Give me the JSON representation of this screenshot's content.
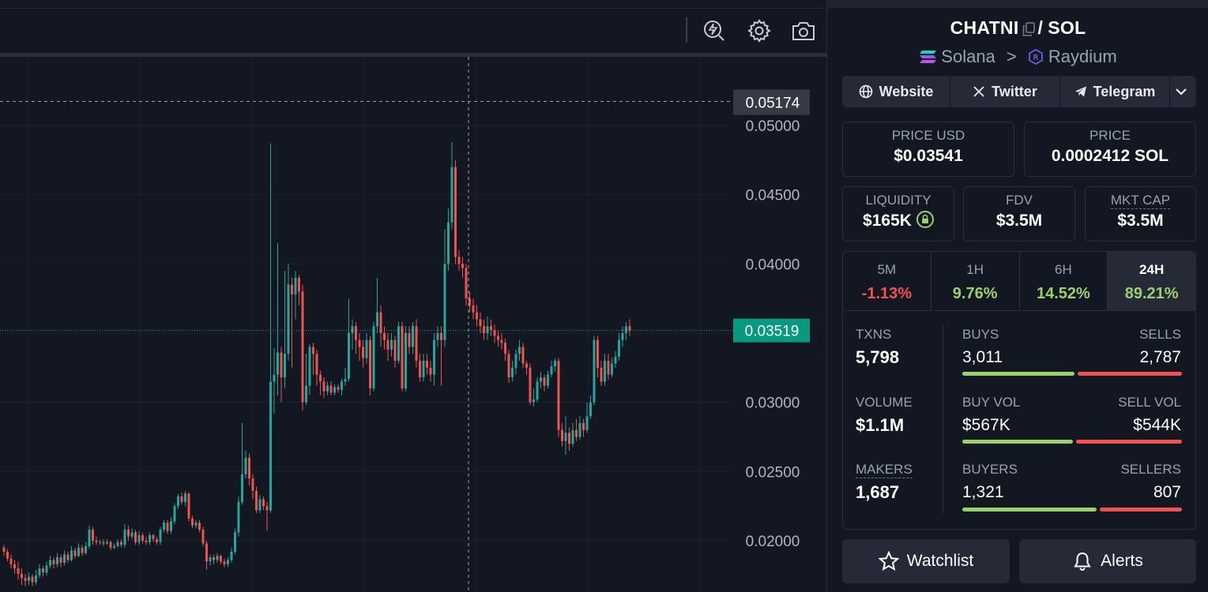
{
  "chart": {
    "price_ticks": [
      "0.05000",
      "0.04500",
      "0.04000",
      "0.03000",
      "0.02500",
      "0.02000"
    ],
    "crosshair_price": "0.05174",
    "last_price": "0.03519",
    "colors": {
      "up": "#26a69a",
      "down": "#ef5350",
      "last_price_bg": "#089981",
      "crosshair_bg": "#363a45"
    }
  },
  "chart_data": {
    "type": "candlestick",
    "y_axis_ticks": [
      0.05,
      0.045,
      0.04,
      0.03,
      0.025,
      0.02
    ],
    "ylim": [
      0.0165,
      0.0545
    ],
    "last_price": 0.03519,
    "crosshair_price": 0.05174,
    "candles": [
      {
        "o": 0.0195,
        "c": 0.0192,
        "h": 0.0197,
        "l": 0.0189
      },
      {
        "o": 0.0192,
        "c": 0.0187,
        "h": 0.0194,
        "l": 0.0185
      },
      {
        "o": 0.0187,
        "c": 0.0183,
        "h": 0.019,
        "l": 0.018
      },
      {
        "o": 0.0183,
        "c": 0.018,
        "h": 0.0186,
        "l": 0.0176
      },
      {
        "o": 0.018,
        "c": 0.0176,
        "h": 0.0185,
        "l": 0.0172
      },
      {
        "o": 0.0176,
        "c": 0.0173,
        "h": 0.018,
        "l": 0.0168
      },
      {
        "o": 0.0173,
        "c": 0.0171,
        "h": 0.0176,
        "l": 0.0167
      },
      {
        "o": 0.0171,
        "c": 0.0174,
        "h": 0.0177,
        "l": 0.0168
      },
      {
        "o": 0.0174,
        "c": 0.017,
        "h": 0.0176,
        "l": 0.0167
      },
      {
        "o": 0.017,
        "c": 0.0175,
        "h": 0.0179,
        "l": 0.0168
      },
      {
        "o": 0.0175,
        "c": 0.018,
        "h": 0.0183,
        "l": 0.0173
      },
      {
        "o": 0.018,
        "c": 0.0177,
        "h": 0.0182,
        "l": 0.0174
      },
      {
        "o": 0.0177,
        "c": 0.0182,
        "h": 0.0185,
        "l": 0.0175
      },
      {
        "o": 0.0182,
        "c": 0.0186,
        "h": 0.0189,
        "l": 0.018
      },
      {
        "o": 0.0186,
        "c": 0.0183,
        "h": 0.0188,
        "l": 0.018
      },
      {
        "o": 0.0183,
        "c": 0.0188,
        "h": 0.0191,
        "l": 0.0181
      },
      {
        "o": 0.0188,
        "c": 0.0184,
        "h": 0.019,
        "l": 0.0181
      },
      {
        "o": 0.0184,
        "c": 0.019,
        "h": 0.0193,
        "l": 0.0182
      },
      {
        "o": 0.019,
        "c": 0.0186,
        "h": 0.0192,
        "l": 0.0184
      },
      {
        "o": 0.0186,
        "c": 0.0193,
        "h": 0.0196,
        "l": 0.0185
      },
      {
        "o": 0.0193,
        "c": 0.0189,
        "h": 0.0195,
        "l": 0.0187
      },
      {
        "o": 0.0189,
        "c": 0.0195,
        "h": 0.0198,
        "l": 0.0188
      },
      {
        "o": 0.0195,
        "c": 0.0191,
        "h": 0.0197,
        "l": 0.0189
      },
      {
        "o": 0.0191,
        "c": 0.0196,
        "h": 0.0199,
        "l": 0.019
      },
      {
        "o": 0.0196,
        "c": 0.0208,
        "h": 0.0211,
        "l": 0.0194
      },
      {
        "o": 0.0208,
        "c": 0.02,
        "h": 0.021,
        "l": 0.0197
      },
      {
        "o": 0.02,
        "c": 0.0199,
        "h": 0.0203,
        "l": 0.0197
      },
      {
        "o": 0.0199,
        "c": 0.0199,
        "h": 0.0201,
        "l": 0.0197
      },
      {
        "o": 0.0199,
        "c": 0.0198,
        "h": 0.0201,
        "l": 0.0196
      },
      {
        "o": 0.0198,
        "c": 0.0199,
        "h": 0.0201,
        "l": 0.0197
      },
      {
        "o": 0.0199,
        "c": 0.0195,
        "h": 0.02,
        "l": 0.0193
      },
      {
        "o": 0.0195,
        "c": 0.0196,
        "h": 0.0198,
        "l": 0.0194
      },
      {
        "o": 0.0196,
        "c": 0.0199,
        "h": 0.0201,
        "l": 0.0195
      },
      {
        "o": 0.0199,
        "c": 0.0197,
        "h": 0.0201,
        "l": 0.0195
      },
      {
        "o": 0.0197,
        "c": 0.0208,
        "h": 0.0212,
        "l": 0.0195
      },
      {
        "o": 0.0208,
        "c": 0.0203,
        "h": 0.0211,
        "l": 0.02
      },
      {
        "o": 0.0203,
        "c": 0.0206,
        "h": 0.0209,
        "l": 0.0201
      },
      {
        "o": 0.0206,
        "c": 0.0199,
        "h": 0.0208,
        "l": 0.0197
      },
      {
        "o": 0.0199,
        "c": 0.0204,
        "h": 0.0207,
        "l": 0.0197
      },
      {
        "o": 0.0204,
        "c": 0.02,
        "h": 0.0206,
        "l": 0.0198
      },
      {
        "o": 0.02,
        "c": 0.0199,
        "h": 0.0203,
        "l": 0.0197
      },
      {
        "o": 0.0199,
        "c": 0.0204,
        "h": 0.0206,
        "l": 0.0197
      },
      {
        "o": 0.0204,
        "c": 0.0201,
        "h": 0.0205,
        "l": 0.0199
      },
      {
        "o": 0.0201,
        "c": 0.0199,
        "h": 0.0203,
        "l": 0.0197
      },
      {
        "o": 0.0199,
        "c": 0.0208,
        "h": 0.021,
        "l": 0.0197
      },
      {
        "o": 0.0208,
        "c": 0.0213,
        "h": 0.0215,
        "l": 0.0206
      },
      {
        "o": 0.0213,
        "c": 0.0207,
        "h": 0.0215,
        "l": 0.0205
      },
      {
        "o": 0.0207,
        "c": 0.0214,
        "h": 0.0217,
        "l": 0.0205
      },
      {
        "o": 0.0214,
        "c": 0.0225,
        "h": 0.0227,
        "l": 0.0212
      },
      {
        "o": 0.0225,
        "c": 0.0232,
        "h": 0.0234,
        "l": 0.0223
      },
      {
        "o": 0.0232,
        "c": 0.0228,
        "h": 0.0235,
        "l": 0.0226
      },
      {
        "o": 0.0228,
        "c": 0.0234,
        "h": 0.0236,
        "l": 0.0225
      },
      {
        "o": 0.0234,
        "c": 0.0216,
        "h": 0.0235,
        "l": 0.0214
      },
      {
        "o": 0.0216,
        "c": 0.0211,
        "h": 0.0218,
        "l": 0.0209
      },
      {
        "o": 0.0211,
        "c": 0.0213,
        "h": 0.0215,
        "l": 0.0209
      },
      {
        "o": 0.0213,
        "c": 0.0208,
        "h": 0.0215,
        "l": 0.0206
      },
      {
        "o": 0.0208,
        "c": 0.0198,
        "h": 0.021,
        "l": 0.0196
      },
      {
        "o": 0.0198,
        "c": 0.0185,
        "h": 0.02,
        "l": 0.0179
      },
      {
        "o": 0.0185,
        "c": 0.0188,
        "h": 0.019,
        "l": 0.0182
      },
      {
        "o": 0.0188,
        "c": 0.0186,
        "h": 0.019,
        "l": 0.0183
      },
      {
        "o": 0.0186,
        "c": 0.0189,
        "h": 0.0191,
        "l": 0.0184
      },
      {
        "o": 0.0189,
        "c": 0.0185,
        "h": 0.019,
        "l": 0.0183
      },
      {
        "o": 0.0185,
        "c": 0.0183,
        "h": 0.0187,
        "l": 0.0181
      },
      {
        "o": 0.0183,
        "c": 0.0186,
        "h": 0.0188,
        "l": 0.0181
      },
      {
        "o": 0.0186,
        "c": 0.0192,
        "h": 0.0195,
        "l": 0.0184
      },
      {
        "o": 0.0192,
        "c": 0.0206,
        "h": 0.0209,
        "l": 0.019
      },
      {
        "o": 0.0206,
        "c": 0.0228,
        "h": 0.0232,
        "l": 0.0203
      },
      {
        "o": 0.0228,
        "c": 0.0248,
        "h": 0.0285,
        "l": 0.0226
      },
      {
        "o": 0.0248,
        "c": 0.026,
        "h": 0.0265,
        "l": 0.0245
      },
      {
        "o": 0.026,
        "c": 0.0245,
        "h": 0.0263,
        "l": 0.024
      },
      {
        "o": 0.0245,
        "c": 0.0236,
        "h": 0.0248,
        "l": 0.023
      },
      {
        "o": 0.0236,
        "c": 0.0222,
        "h": 0.0239,
        "l": 0.022
      },
      {
        "o": 0.0222,
        "c": 0.023,
        "h": 0.0233,
        "l": 0.022
      },
      {
        "o": 0.023,
        "c": 0.0225,
        "h": 0.0232,
        "l": 0.0222
      },
      {
        "o": 0.0225,
        "c": 0.0222,
        "h": 0.0228,
        "l": 0.0207
      },
      {
        "o": 0.0222,
        "c": 0.0315,
        "h": 0.0487,
        "l": 0.022
      },
      {
        "o": 0.0315,
        "c": 0.032,
        "h": 0.0339,
        "l": 0.0292
      },
      {
        "o": 0.032,
        "c": 0.0336,
        "h": 0.0415,
        "l": 0.0305
      },
      {
        "o": 0.0336,
        "c": 0.0318,
        "h": 0.034,
        "l": 0.03
      },
      {
        "o": 0.0318,
        "c": 0.0335,
        "h": 0.0395,
        "l": 0.031
      },
      {
        "o": 0.0335,
        "c": 0.0385,
        "h": 0.04,
        "l": 0.033
      },
      {
        "o": 0.0385,
        "c": 0.0378,
        "h": 0.039,
        "l": 0.0325
      },
      {
        "o": 0.0378,
        "c": 0.039,
        "h": 0.0395,
        "l": 0.036
      },
      {
        "o": 0.039,
        "c": 0.038,
        "h": 0.0392,
        "l": 0.037
      },
      {
        "o": 0.038,
        "c": 0.03,
        "h": 0.0385,
        "l": 0.0294
      },
      {
        "o": 0.03,
        "c": 0.0312,
        "h": 0.0335,
        "l": 0.0298
      },
      {
        "o": 0.0312,
        "c": 0.034,
        "h": 0.0342,
        "l": 0.0305
      },
      {
        "o": 0.034,
        "c": 0.0335,
        "h": 0.0343,
        "l": 0.032
      },
      {
        "o": 0.0335,
        "c": 0.032,
        "h": 0.0338,
        "l": 0.0312
      },
      {
        "o": 0.032,
        "c": 0.0315,
        "h": 0.0323,
        "l": 0.0305
      },
      {
        "o": 0.0315,
        "c": 0.0308,
        "h": 0.0318,
        "l": 0.0303
      },
      {
        "o": 0.0308,
        "c": 0.0312,
        "h": 0.0315,
        "l": 0.0305
      },
      {
        "o": 0.0312,
        "c": 0.0307,
        "h": 0.0315,
        "l": 0.0305
      },
      {
        "o": 0.0307,
        "c": 0.0311,
        "h": 0.0313,
        "l": 0.0305
      },
      {
        "o": 0.0311,
        "c": 0.0309,
        "h": 0.0313,
        "l": 0.0307
      },
      {
        "o": 0.0309,
        "c": 0.0315,
        "h": 0.0317,
        "l": 0.0305
      },
      {
        "o": 0.0315,
        "c": 0.0317,
        "h": 0.0325,
        "l": 0.0312
      },
      {
        "o": 0.0317,
        "c": 0.035,
        "h": 0.0375,
        "l": 0.0315
      },
      {
        "o": 0.035,
        "c": 0.0355,
        "h": 0.036,
        "l": 0.0338
      },
      {
        "o": 0.0355,
        "c": 0.0345,
        "h": 0.0358,
        "l": 0.0335
      },
      {
        "o": 0.0345,
        "c": 0.034,
        "h": 0.035,
        "l": 0.033
      },
      {
        "o": 0.034,
        "c": 0.0332,
        "h": 0.0345,
        "l": 0.0325
      },
      {
        "o": 0.0332,
        "c": 0.0345,
        "h": 0.035,
        "l": 0.0328
      },
      {
        "o": 0.0345,
        "c": 0.031,
        "h": 0.0348,
        "l": 0.0305
      },
      {
        "o": 0.031,
        "c": 0.0355,
        "h": 0.0358,
        "l": 0.0308
      },
      {
        "o": 0.0355,
        "c": 0.0365,
        "h": 0.039,
        "l": 0.035
      },
      {
        "o": 0.0365,
        "c": 0.035,
        "h": 0.037,
        "l": 0.034
      },
      {
        "o": 0.035,
        "c": 0.0345,
        "h": 0.0355,
        "l": 0.0338
      },
      {
        "o": 0.0345,
        "c": 0.0338,
        "h": 0.035,
        "l": 0.033
      },
      {
        "o": 0.0338,
        "c": 0.0345,
        "h": 0.035,
        "l": 0.0333
      },
      {
        "o": 0.0345,
        "c": 0.033,
        "h": 0.0348,
        "l": 0.0325
      },
      {
        "o": 0.033,
        "c": 0.0355,
        "h": 0.0358,
        "l": 0.0328
      },
      {
        "o": 0.0355,
        "c": 0.031,
        "h": 0.0358,
        "l": 0.0308
      },
      {
        "o": 0.031,
        "c": 0.035,
        "h": 0.0355,
        "l": 0.0308
      },
      {
        "o": 0.035,
        "c": 0.034,
        "h": 0.0355,
        "l": 0.0335
      },
      {
        "o": 0.034,
        "c": 0.0355,
        "h": 0.0358,
        "l": 0.0335
      },
      {
        "o": 0.0355,
        "c": 0.033,
        "h": 0.036,
        "l": 0.0325
      },
      {
        "o": 0.033,
        "c": 0.0318,
        "h": 0.0335,
        "l": 0.0315
      },
      {
        "o": 0.0318,
        "c": 0.033,
        "h": 0.0335,
        "l": 0.0315
      },
      {
        "o": 0.033,
        "c": 0.0325,
        "h": 0.0335,
        "l": 0.032
      },
      {
        "o": 0.0325,
        "c": 0.032,
        "h": 0.033,
        "l": 0.0315
      },
      {
        "o": 0.032,
        "c": 0.0345,
        "h": 0.035,
        "l": 0.0312
      },
      {
        "o": 0.0345,
        "c": 0.035,
        "h": 0.0355,
        "l": 0.034
      },
      {
        "o": 0.035,
        "c": 0.0345,
        "h": 0.0355,
        "l": 0.0312
      },
      {
        "o": 0.0345,
        "c": 0.04,
        "h": 0.0425,
        "l": 0.034
      },
      {
        "o": 0.04,
        "c": 0.043,
        "h": 0.044,
        "l": 0.0395
      },
      {
        "o": 0.043,
        "c": 0.047,
        "h": 0.0488,
        "l": 0.0425
      },
      {
        "o": 0.047,
        "c": 0.0405,
        "h": 0.0475,
        "l": 0.04
      },
      {
        "o": 0.0405,
        "c": 0.04,
        "h": 0.041,
        "l": 0.0395
      },
      {
        "o": 0.04,
        "c": 0.0397,
        "h": 0.0405,
        "l": 0.039
      },
      {
        "o": 0.0397,
        "c": 0.0375,
        "h": 0.04,
        "l": 0.037
      },
      {
        "o": 0.0375,
        "c": 0.037,
        "h": 0.038,
        "l": 0.0365
      },
      {
        "o": 0.037,
        "c": 0.0365,
        "h": 0.0375,
        "l": 0.036
      },
      {
        "o": 0.0365,
        "c": 0.036,
        "h": 0.037,
        "l": 0.0355
      },
      {
        "o": 0.036,
        "c": 0.0355,
        "h": 0.0365,
        "l": 0.035
      },
      {
        "o": 0.0355,
        "c": 0.035,
        "h": 0.036,
        "l": 0.0345
      },
      {
        "o": 0.035,
        "c": 0.0355,
        "h": 0.0362,
        "l": 0.0345
      },
      {
        "o": 0.0355,
        "c": 0.0352,
        "h": 0.036,
        "l": 0.0348
      },
      {
        "o": 0.0352,
        "c": 0.0348,
        "h": 0.0356,
        "l": 0.0343
      },
      {
        "o": 0.0348,
        "c": 0.0345,
        "h": 0.0352,
        "l": 0.034
      },
      {
        "o": 0.0345,
        "c": 0.0343,
        "h": 0.035,
        "l": 0.0338
      },
      {
        "o": 0.0343,
        "c": 0.0335,
        "h": 0.0346,
        "l": 0.033
      },
      {
        "o": 0.0335,
        "c": 0.0318,
        "h": 0.0338,
        "l": 0.0314
      },
      {
        "o": 0.0318,
        "c": 0.0325,
        "h": 0.033,
        "l": 0.0315
      },
      {
        "o": 0.0325,
        "c": 0.0335,
        "h": 0.0338,
        "l": 0.032
      },
      {
        "o": 0.0335,
        "c": 0.034,
        "h": 0.0345,
        "l": 0.033
      },
      {
        "o": 0.034,
        "c": 0.0328,
        "h": 0.0343,
        "l": 0.0325
      },
      {
        "o": 0.0328,
        "c": 0.0325,
        "h": 0.033,
        "l": 0.032
      },
      {
        "o": 0.0325,
        "c": 0.03,
        "h": 0.0328,
        "l": 0.0298
      },
      {
        "o": 0.03,
        "c": 0.0302,
        "h": 0.031,
        "l": 0.0297
      },
      {
        "o": 0.0302,
        "c": 0.0315,
        "h": 0.0318,
        "l": 0.03
      },
      {
        "o": 0.0315,
        "c": 0.0318,
        "h": 0.0322,
        "l": 0.031
      },
      {
        "o": 0.0318,
        "c": 0.0312,
        "h": 0.032,
        "l": 0.0308
      },
      {
        "o": 0.0312,
        "c": 0.032,
        "h": 0.0323,
        "l": 0.031
      },
      {
        "o": 0.032,
        "c": 0.0326,
        "h": 0.033,
        "l": 0.0318
      },
      {
        "o": 0.0326,
        "c": 0.033,
        "h": 0.0332,
        "l": 0.0322
      },
      {
        "o": 0.033,
        "c": 0.028,
        "h": 0.0332,
        "l": 0.0275
      },
      {
        "o": 0.028,
        "c": 0.0272,
        "h": 0.0285,
        "l": 0.0268
      },
      {
        "o": 0.0272,
        "c": 0.0278,
        "h": 0.029,
        "l": 0.0262
      },
      {
        "o": 0.0278,
        "c": 0.027,
        "h": 0.0282,
        "l": 0.0265
      },
      {
        "o": 0.027,
        "c": 0.028,
        "h": 0.0285,
        "l": 0.0268
      },
      {
        "o": 0.028,
        "c": 0.0275,
        "h": 0.0288,
        "l": 0.0272
      },
      {
        "o": 0.0275,
        "c": 0.0285,
        "h": 0.029,
        "l": 0.0273
      },
      {
        "o": 0.0285,
        "c": 0.028,
        "h": 0.0288,
        "l": 0.0275
      },
      {
        "o": 0.028,
        "c": 0.029,
        "h": 0.03,
        "l": 0.0278
      },
      {
        "o": 0.029,
        "c": 0.03,
        "h": 0.0305,
        "l": 0.0288
      },
      {
        "o": 0.03,
        "c": 0.0345,
        "h": 0.0348,
        "l": 0.0298
      },
      {
        "o": 0.0345,
        "c": 0.0325,
        "h": 0.0348,
        "l": 0.0318
      },
      {
        "o": 0.0325,
        "c": 0.0315,
        "h": 0.033,
        "l": 0.0312
      },
      {
        "o": 0.0315,
        "c": 0.033,
        "h": 0.0335,
        "l": 0.0312
      },
      {
        "o": 0.033,
        "c": 0.032,
        "h": 0.0335,
        "l": 0.0316
      },
      {
        "o": 0.032,
        "c": 0.0328,
        "h": 0.0332,
        "l": 0.0318
      },
      {
        "o": 0.0328,
        "c": 0.0333,
        "h": 0.0337,
        "l": 0.0325
      },
      {
        "o": 0.0333,
        "c": 0.0345,
        "h": 0.035,
        "l": 0.033
      },
      {
        "o": 0.0345,
        "c": 0.035,
        "h": 0.0355,
        "l": 0.034
      },
      {
        "o": 0.035,
        "c": 0.0355,
        "h": 0.0358,
        "l": 0.0345
      },
      {
        "o": 0.0355,
        "c": 0.0352,
        "h": 0.036,
        "l": 0.0348
      }
    ]
  },
  "pair": {
    "base": "CHATNI",
    "separator": "/",
    "quote": "SOL"
  },
  "route": {
    "chain": "Solana",
    "arrow": ">",
    "dex": "Raydium"
  },
  "links": {
    "website": "Website",
    "twitter": "Twitter",
    "telegram": "Telegram"
  },
  "stats": {
    "price_usd_label": "PRICE USD",
    "price_usd": "$0.03541",
    "price_label": "PRICE",
    "price": "0.0002412 SOL",
    "liquidity_label": "LIQUIDITY",
    "liquidity": "$165K",
    "fdv_label": "FDV",
    "fdv": "$3.5M",
    "mktcap_label": "MKT CAP",
    "mktcap": "$3.5M"
  },
  "timeframes": [
    {
      "label": "5M",
      "value": "-1.13%"
    },
    {
      "label": "1H",
      "value": "9.76%"
    },
    {
      "label": "6H",
      "value": "14.52%"
    },
    {
      "label": "24H",
      "value": "89.21%"
    }
  ],
  "txns": {
    "txns_label": "TXNS",
    "txns": "5,798",
    "buys_label": "BUYS",
    "buys": "3,011",
    "sells_label": "SELLS",
    "sells": "2,787",
    "volume_label": "VOLUME",
    "volume": "$1.1M",
    "buy_vol_label": "BUY VOL",
    "buy_vol": "$567K",
    "sell_vol_label": "SELL VOL",
    "sell_vol": "$544K",
    "makers_label": "MAKERS",
    "makers": "1,687",
    "buyers_label": "BUYERS",
    "buyers": "1,321",
    "sellers_label": "SELLERS",
    "sellers": "807",
    "ratios": {
      "buys": 0.519,
      "buy_vol": 0.51,
      "buyers": 0.62
    }
  },
  "actions": {
    "watchlist": "Watchlist",
    "alerts": "Alerts"
  },
  "colors": {
    "green": "#9bd06e",
    "red": "#f0524f",
    "bg": "#131722",
    "card": "#262a36"
  }
}
